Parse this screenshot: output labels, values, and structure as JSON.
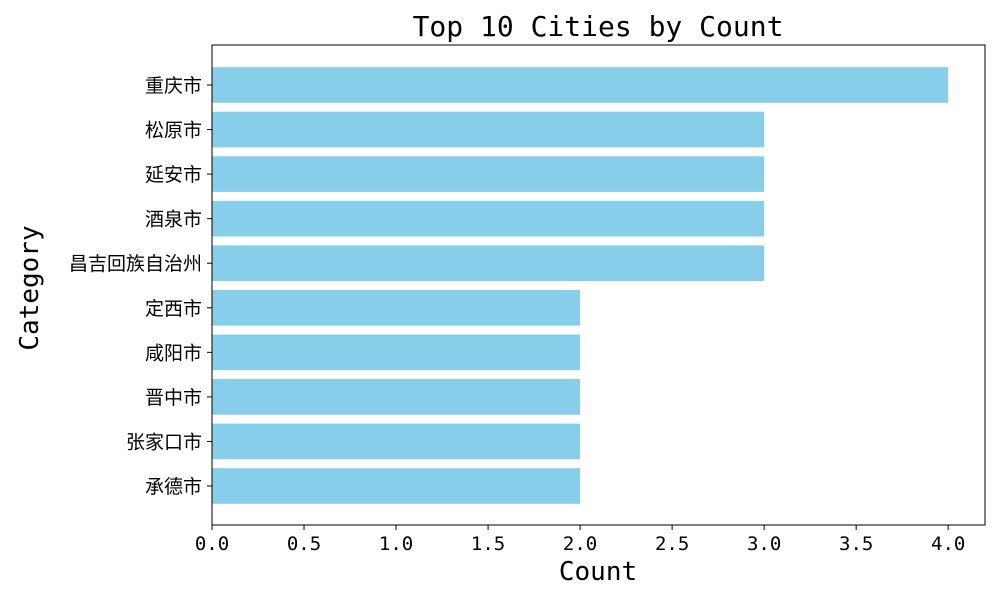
{
  "chart_data": {
    "type": "bar",
    "orientation": "horizontal",
    "title": "Top 10 Cities by Count",
    "xlabel": "Count",
    "ylabel": "Category",
    "xlim": [
      0,
      4.2
    ],
    "x_ticks": [
      "0.0",
      "0.5",
      "1.0",
      "1.5",
      "2.0",
      "2.5",
      "3.0",
      "3.5",
      "4.0"
    ],
    "categories": [
      "重庆市",
      "松原市",
      "延安市",
      "酒泉市",
      "昌吉回族自治州",
      "定西市",
      "咸阳市",
      "晋中市",
      "张家口市",
      "承德市"
    ],
    "values": [
      4,
      3,
      3,
      3,
      3,
      2,
      2,
      2,
      2,
      2
    ],
    "bar_color": "#87ceeb",
    "grid": false,
    "legend": "none"
  }
}
